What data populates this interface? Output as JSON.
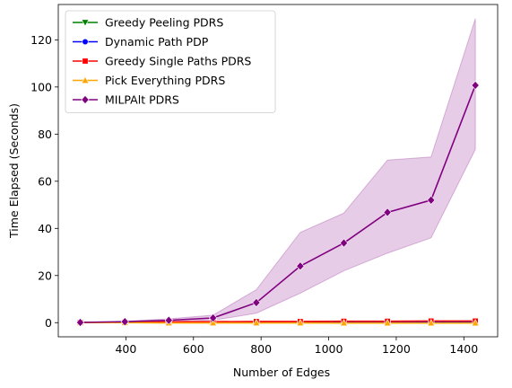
{
  "chart_data": {
    "type": "line",
    "xlabel": "Number of Edges",
    "ylabel": "Time Elapsed (Seconds)",
    "xlim": [
      200,
      1500
    ],
    "ylim": [
      -6,
      135
    ],
    "xticks": [
      400,
      600,
      800,
      1000,
      1200,
      1400
    ],
    "yticks": [
      0,
      20,
      40,
      60,
      80,
      100,
      120
    ],
    "grid": false,
    "legend_position": "top-left",
    "x": [
      265,
      397,
      527,
      658,
      786,
      916,
      1045,
      1174,
      1303,
      1434
    ],
    "series": [
      {
        "name": "Greedy Peeling PDRS",
        "color": "#008000",
        "marker": "triangle-down",
        "values": [
          0.05,
          0.1,
          0.15,
          0.2,
          0.25,
          0.3,
          0.3,
          0.3,
          0.35,
          0.35
        ]
      },
      {
        "name": "Dynamic Path PDP",
        "color": "#0000ff",
        "marker": "circle",
        "values": [
          0.05,
          0.1,
          0.15,
          0.25,
          0.3,
          0.35,
          0.35,
          0.4,
          0.4,
          0.45
        ]
      },
      {
        "name": "Greedy Single Paths PDRS",
        "color": "#ff0000",
        "marker": "square",
        "values": [
          0.1,
          0.2,
          0.3,
          0.4,
          0.5,
          0.5,
          0.6,
          0.6,
          0.7,
          0.7
        ]
      },
      {
        "name": "Pick Everything PDRS",
        "color": "#ffa500",
        "marker": "triangle-up",
        "values": [
          0.0,
          0.0,
          -0.1,
          -0.1,
          -0.1,
          -0.1,
          -0.15,
          -0.15,
          -0.15,
          -0.15
        ]
      },
      {
        "name": "MILPAlt PDRS",
        "color": "#800080",
        "marker": "diamond",
        "values": [
          0.1,
          0.4,
          1.0,
          2.0,
          8.5,
          24.0,
          33.8,
          46.8,
          52.0,
          100.7
        ],
        "ci_low": [
          0.0,
          0.2,
          0.5,
          1.0,
          4.0,
          12.5,
          22.0,
          29.5,
          36.0,
          73.5
        ],
        "ci_high": [
          0.2,
          0.6,
          1.6,
          3.2,
          14.0,
          38.3,
          46.5,
          69.0,
          70.3,
          129.0
        ]
      }
    ]
  }
}
